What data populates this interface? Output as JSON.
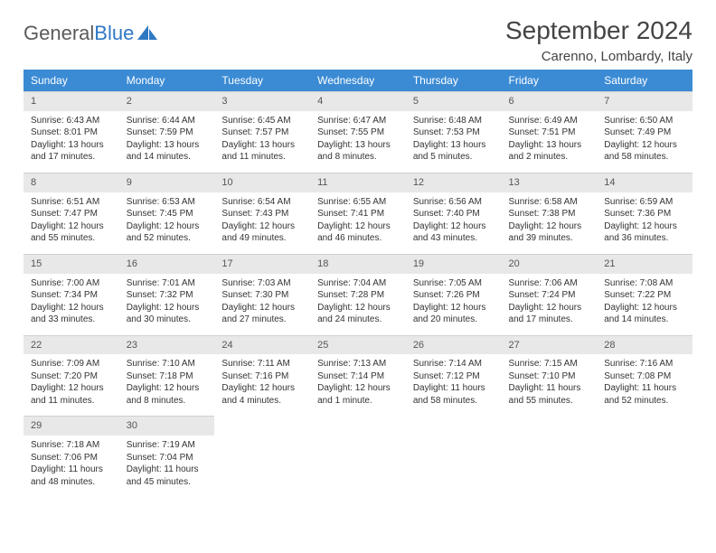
{
  "logo": {
    "text1": "General",
    "text2": "Blue"
  },
  "title": "September 2024",
  "location": "Carenno, Lombardy, Italy",
  "day_headers": [
    "Sunday",
    "Monday",
    "Tuesday",
    "Wednesday",
    "Thursday",
    "Friday",
    "Saturday"
  ],
  "colors": {
    "header_bg": "#3b8bd4",
    "header_text": "#ffffff",
    "daynum_bg": "#e8e8e8",
    "body_text": "#333333",
    "logo_gray": "#5b5b5b",
    "logo_blue": "#2f78c4"
  },
  "days": [
    {
      "n": "1",
      "sunrise": "Sunrise: 6:43 AM",
      "sunset": "Sunset: 8:01 PM",
      "day1": "Daylight: 13 hours",
      "day2": "and 17 minutes."
    },
    {
      "n": "2",
      "sunrise": "Sunrise: 6:44 AM",
      "sunset": "Sunset: 7:59 PM",
      "day1": "Daylight: 13 hours",
      "day2": "and 14 minutes."
    },
    {
      "n": "3",
      "sunrise": "Sunrise: 6:45 AM",
      "sunset": "Sunset: 7:57 PM",
      "day1": "Daylight: 13 hours",
      "day2": "and 11 minutes."
    },
    {
      "n": "4",
      "sunrise": "Sunrise: 6:47 AM",
      "sunset": "Sunset: 7:55 PM",
      "day1": "Daylight: 13 hours",
      "day2": "and 8 minutes."
    },
    {
      "n": "5",
      "sunrise": "Sunrise: 6:48 AM",
      "sunset": "Sunset: 7:53 PM",
      "day1": "Daylight: 13 hours",
      "day2": "and 5 minutes."
    },
    {
      "n": "6",
      "sunrise": "Sunrise: 6:49 AM",
      "sunset": "Sunset: 7:51 PM",
      "day1": "Daylight: 13 hours",
      "day2": "and 2 minutes."
    },
    {
      "n": "7",
      "sunrise": "Sunrise: 6:50 AM",
      "sunset": "Sunset: 7:49 PM",
      "day1": "Daylight: 12 hours",
      "day2": "and 58 minutes."
    },
    {
      "n": "8",
      "sunrise": "Sunrise: 6:51 AM",
      "sunset": "Sunset: 7:47 PM",
      "day1": "Daylight: 12 hours",
      "day2": "and 55 minutes."
    },
    {
      "n": "9",
      "sunrise": "Sunrise: 6:53 AM",
      "sunset": "Sunset: 7:45 PM",
      "day1": "Daylight: 12 hours",
      "day2": "and 52 minutes."
    },
    {
      "n": "10",
      "sunrise": "Sunrise: 6:54 AM",
      "sunset": "Sunset: 7:43 PM",
      "day1": "Daylight: 12 hours",
      "day2": "and 49 minutes."
    },
    {
      "n": "11",
      "sunrise": "Sunrise: 6:55 AM",
      "sunset": "Sunset: 7:41 PM",
      "day1": "Daylight: 12 hours",
      "day2": "and 46 minutes."
    },
    {
      "n": "12",
      "sunrise": "Sunrise: 6:56 AM",
      "sunset": "Sunset: 7:40 PM",
      "day1": "Daylight: 12 hours",
      "day2": "and 43 minutes."
    },
    {
      "n": "13",
      "sunrise": "Sunrise: 6:58 AM",
      "sunset": "Sunset: 7:38 PM",
      "day1": "Daylight: 12 hours",
      "day2": "and 39 minutes."
    },
    {
      "n": "14",
      "sunrise": "Sunrise: 6:59 AM",
      "sunset": "Sunset: 7:36 PM",
      "day1": "Daylight: 12 hours",
      "day2": "and 36 minutes."
    },
    {
      "n": "15",
      "sunrise": "Sunrise: 7:00 AM",
      "sunset": "Sunset: 7:34 PM",
      "day1": "Daylight: 12 hours",
      "day2": "and 33 minutes."
    },
    {
      "n": "16",
      "sunrise": "Sunrise: 7:01 AM",
      "sunset": "Sunset: 7:32 PM",
      "day1": "Daylight: 12 hours",
      "day2": "and 30 minutes."
    },
    {
      "n": "17",
      "sunrise": "Sunrise: 7:03 AM",
      "sunset": "Sunset: 7:30 PM",
      "day1": "Daylight: 12 hours",
      "day2": "and 27 minutes."
    },
    {
      "n": "18",
      "sunrise": "Sunrise: 7:04 AM",
      "sunset": "Sunset: 7:28 PM",
      "day1": "Daylight: 12 hours",
      "day2": "and 24 minutes."
    },
    {
      "n": "19",
      "sunrise": "Sunrise: 7:05 AM",
      "sunset": "Sunset: 7:26 PM",
      "day1": "Daylight: 12 hours",
      "day2": "and 20 minutes."
    },
    {
      "n": "20",
      "sunrise": "Sunrise: 7:06 AM",
      "sunset": "Sunset: 7:24 PM",
      "day1": "Daylight: 12 hours",
      "day2": "and 17 minutes."
    },
    {
      "n": "21",
      "sunrise": "Sunrise: 7:08 AM",
      "sunset": "Sunset: 7:22 PM",
      "day1": "Daylight: 12 hours",
      "day2": "and 14 minutes."
    },
    {
      "n": "22",
      "sunrise": "Sunrise: 7:09 AM",
      "sunset": "Sunset: 7:20 PM",
      "day1": "Daylight: 12 hours",
      "day2": "and 11 minutes."
    },
    {
      "n": "23",
      "sunrise": "Sunrise: 7:10 AM",
      "sunset": "Sunset: 7:18 PM",
      "day1": "Daylight: 12 hours",
      "day2": "and 8 minutes."
    },
    {
      "n": "24",
      "sunrise": "Sunrise: 7:11 AM",
      "sunset": "Sunset: 7:16 PM",
      "day1": "Daylight: 12 hours",
      "day2": "and 4 minutes."
    },
    {
      "n": "25",
      "sunrise": "Sunrise: 7:13 AM",
      "sunset": "Sunset: 7:14 PM",
      "day1": "Daylight: 12 hours",
      "day2": "and 1 minute."
    },
    {
      "n": "26",
      "sunrise": "Sunrise: 7:14 AM",
      "sunset": "Sunset: 7:12 PM",
      "day1": "Daylight: 11 hours",
      "day2": "and 58 minutes."
    },
    {
      "n": "27",
      "sunrise": "Sunrise: 7:15 AM",
      "sunset": "Sunset: 7:10 PM",
      "day1": "Daylight: 11 hours",
      "day2": "and 55 minutes."
    },
    {
      "n": "28",
      "sunrise": "Sunrise: 7:16 AM",
      "sunset": "Sunset: 7:08 PM",
      "day1": "Daylight: 11 hours",
      "day2": "and 52 minutes."
    },
    {
      "n": "29",
      "sunrise": "Sunrise: 7:18 AM",
      "sunset": "Sunset: 7:06 PM",
      "day1": "Daylight: 11 hours",
      "day2": "and 48 minutes."
    },
    {
      "n": "30",
      "sunrise": "Sunrise: 7:19 AM",
      "sunset": "Sunset: 7:04 PM",
      "day1": "Daylight: 11 hours",
      "day2": "and 45 minutes."
    }
  ]
}
